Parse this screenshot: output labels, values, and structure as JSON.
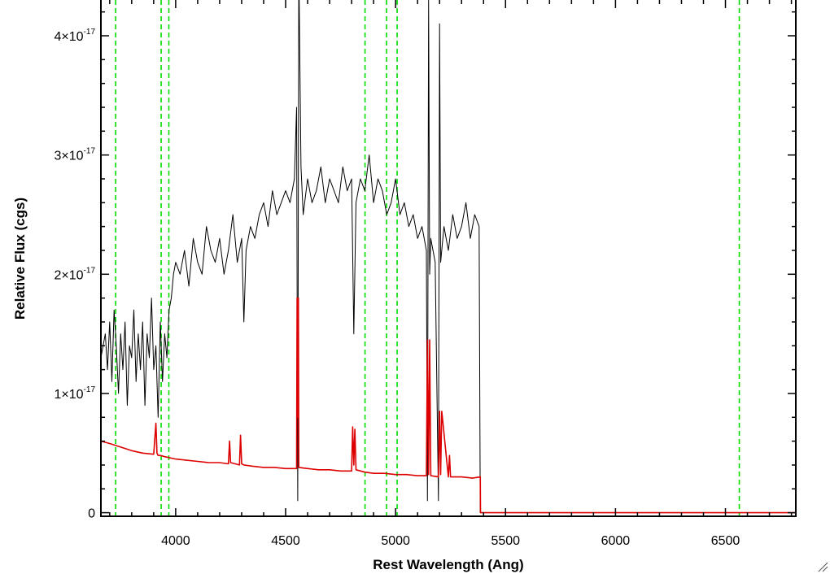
{
  "chart_data": {
    "type": "line",
    "xlabel": "Rest Wavelength (Ang)",
    "ylabel": "Relative Flux (cgs)",
    "xlim": [
      3660,
      6820
    ],
    "ylim": [
      -0.03,
      4.3
    ],
    "y_unit_exponent": -17,
    "x_ticks": [
      4000,
      4500,
      5000,
      5500,
      6000,
      6500
    ],
    "x_tick_labels": [
      "4000",
      "4500",
      "5000",
      "5500",
      "6000",
      "6500"
    ],
    "y_ticks": [
      0,
      1,
      2,
      3,
      4
    ],
    "y_tick_labels": [
      {
        "value": 0,
        "mantissa": "0",
        "exponent": ""
      },
      {
        "value": 1,
        "mantissa": "1×10",
        "exponent": "-17"
      },
      {
        "value": 2,
        "mantissa": "2×10",
        "exponent": "-17"
      },
      {
        "value": 3,
        "mantissa": "3×10",
        "exponent": "-17"
      },
      {
        "value": 4,
        "mantissa": "4×10",
        "exponent": "-17"
      }
    ],
    "grid": false,
    "reference_lines": {
      "color": "#00dd00",
      "style": "dashed",
      "x": [
        3727,
        3934,
        3969,
        4861,
        4959,
        5007,
        6563
      ]
    },
    "series": [
      {
        "color": "#000000",
        "x": [
          3660,
          3670,
          3680,
          3690,
          3700,
          3710,
          3720,
          3730,
          3740,
          3750,
          3760,
          3770,
          3780,
          3790,
          3800,
          3810,
          3820,
          3830,
          3840,
          3850,
          3860,
          3870,
          3880,
          3890,
          3900,
          3910,
          3920,
          3930,
          3940,
          3950,
          3960,
          3970,
          3980,
          3990,
          4000,
          4020,
          4040,
          4060,
          4080,
          4100,
          4120,
          4140,
          4160,
          4180,
          4200,
          4220,
          4240,
          4260,
          4280,
          4300,
          4310,
          4320,
          4340,
          4360,
          4380,
          4400,
          4420,
          4440,
          4460,
          4480,
          4500,
          4520,
          4540,
          4550,
          4555,
          4560,
          4570,
          4580,
          4600,
          4620,
          4640,
          4660,
          4680,
          4700,
          4720,
          4740,
          4760,
          4780,
          4800,
          4810,
          4820,
          4840,
          4860,
          4880,
          4900,
          4920,
          4940,
          4960,
          4980,
          5000,
          5020,
          5040,
          5060,
          5080,
          5100,
          5120,
          5140,
          5145,
          5150,
          5155,
          5160,
          5180,
          5195,
          5200,
          5205,
          5220,
          5240,
          5260,
          5280,
          5300,
          5320,
          5340,
          5360,
          5380,
          5385
        ],
        "y": [
          1.3,
          1.4,
          1.5,
          1.2,
          1.6,
          1.1,
          1.7,
          1.4,
          1.0,
          1.5,
          1.2,
          1.6,
          0.9,
          1.4,
          1.3,
          1.7,
          1.1,
          1.5,
          1.2,
          1.6,
          0.9,
          1.5,
          1.3,
          1.8,
          1.2,
          1.4,
          0.8,
          1.6,
          1.1,
          1.5,
          1.3,
          1.7,
          1.8,
          2.0,
          2.1,
          2.0,
          2.2,
          1.9,
          2.3,
          2.1,
          2.0,
          2.4,
          2.2,
          2.1,
          2.3,
          2.0,
          2.2,
          2.5,
          2.1,
          2.3,
          1.6,
          2.2,
          2.4,
          2.3,
          2.5,
          2.6,
          2.4,
          2.7,
          2.5,
          2.6,
          2.7,
          2.6,
          2.8,
          3.4,
          0.1,
          4.6,
          2.9,
          2.5,
          2.8,
          2.6,
          2.7,
          2.9,
          2.6,
          2.8,
          2.7,
          2.6,
          2.9,
          2.7,
          2.8,
          1.5,
          2.6,
          2.8,
          2.7,
          3.0,
          2.6,
          2.8,
          2.7,
          2.5,
          2.6,
          2.8,
          2.5,
          2.6,
          2.4,
          2.5,
          2.3,
          2.4,
          2.2,
          0.1,
          4.3,
          2.0,
          2.3,
          2.1,
          0.1,
          4.1,
          2.1,
          2.4,
          2.2,
          2.5,
          2.3,
          2.4,
          2.6,
          2.3,
          2.5,
          2.4,
          0.0
        ]
      },
      {
        "color": "#dd0000",
        "x": [
          3660,
          3700,
          3750,
          3800,
          3850,
          3900,
          3910,
          3915,
          3920,
          3930,
          3950,
          4000,
          4050,
          4100,
          4150,
          4200,
          4240,
          4245,
          4250,
          4290,
          4295,
          4300,
          4310,
          4350,
          4400,
          4450,
          4500,
          4550,
          4552,
          4555,
          4558,
          4560,
          4600,
          4650,
          4700,
          4750,
          4800,
          4805,
          4810,
          4815,
          4820,
          4860,
          4900,
          4950,
          5000,
          5050,
          5100,
          5140,
          5145,
          5150,
          5155,
          5160,
          5195,
          5200,
          5205,
          5210,
          5240,
          5245,
          5250,
          5300,
          5350,
          5385,
          5386,
          5400,
          5500,
          6000,
          6500,
          6820
        ],
        "y": [
          0.6,
          0.58,
          0.55,
          0.52,
          0.5,
          0.49,
          0.75,
          0.5,
          0.48,
          0.48,
          0.47,
          0.45,
          0.44,
          0.43,
          0.42,
          0.42,
          0.41,
          0.6,
          0.42,
          0.4,
          0.65,
          0.41,
          0.4,
          0.39,
          0.38,
          0.38,
          0.37,
          0.37,
          1.8,
          0.8,
          1.8,
          0.38,
          0.37,
          0.36,
          0.36,
          0.35,
          0.35,
          0.72,
          0.4,
          0.7,
          0.36,
          0.34,
          0.33,
          0.33,
          0.32,
          0.32,
          0.31,
          0.31,
          1.45,
          0.32,
          1.45,
          0.31,
          0.3,
          0.85,
          0.32,
          0.85,
          0.3,
          0.48,
          0.3,
          0.3,
          0.29,
          0.3,
          0.0,
          0.0,
          0.0,
          0.0,
          0.0,
          0.0
        ]
      }
    ]
  }
}
